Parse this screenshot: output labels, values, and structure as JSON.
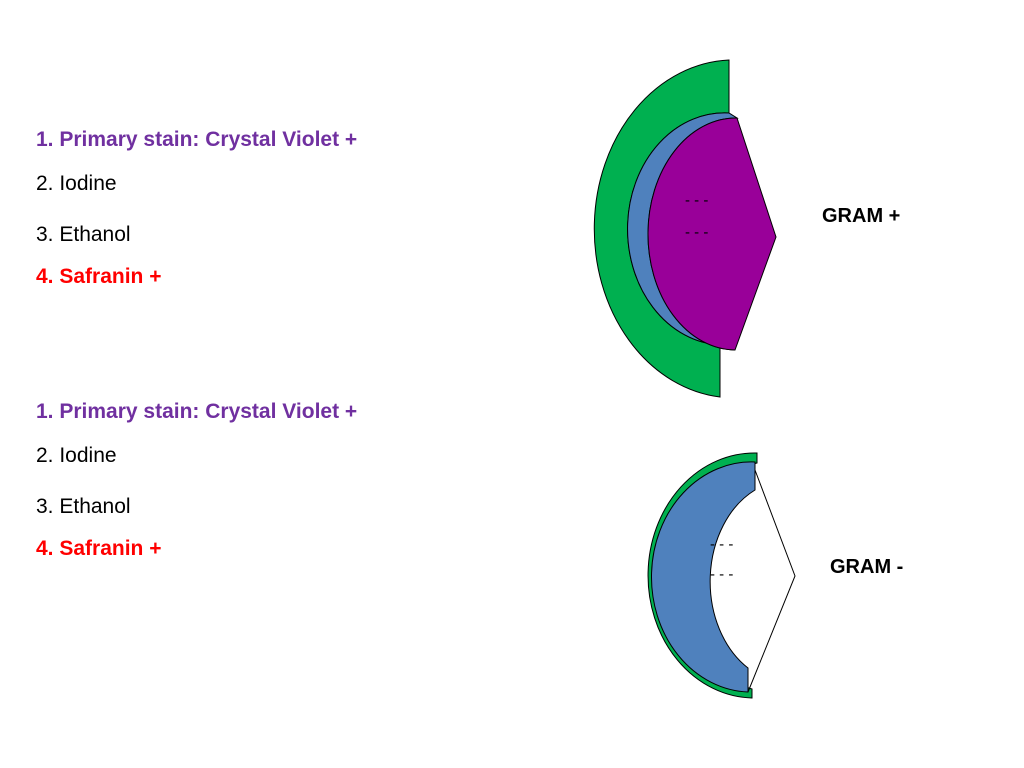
{
  "colors": {
    "violet_text": "#7030A0",
    "red_text": "#FF0000",
    "outer_wall": "#00B050",
    "membrane": "#4F81BD",
    "cytoplasm": "#990099"
  },
  "top_steps": {
    "step1": "1. Primary stain: Crystal Violet +",
    "step2": "2. Iodine",
    "step3": "3. Ethanol",
    "step4": "4. Safranin +"
  },
  "bottom_steps": {
    "step1": "1. Primary stain: Crystal Violet +",
    "step2": "2. Iodine",
    "step3": "3. Ethanol",
    "step4": "4. Safranin +"
  },
  "gram_positive": {
    "label": "GRAM +",
    "charges_row1": "- - -",
    "charges_row2": "- - -"
  },
  "gram_negative": {
    "label": "GRAM -",
    "charges_row1": "- - -",
    "charges_row2": "- - -"
  }
}
